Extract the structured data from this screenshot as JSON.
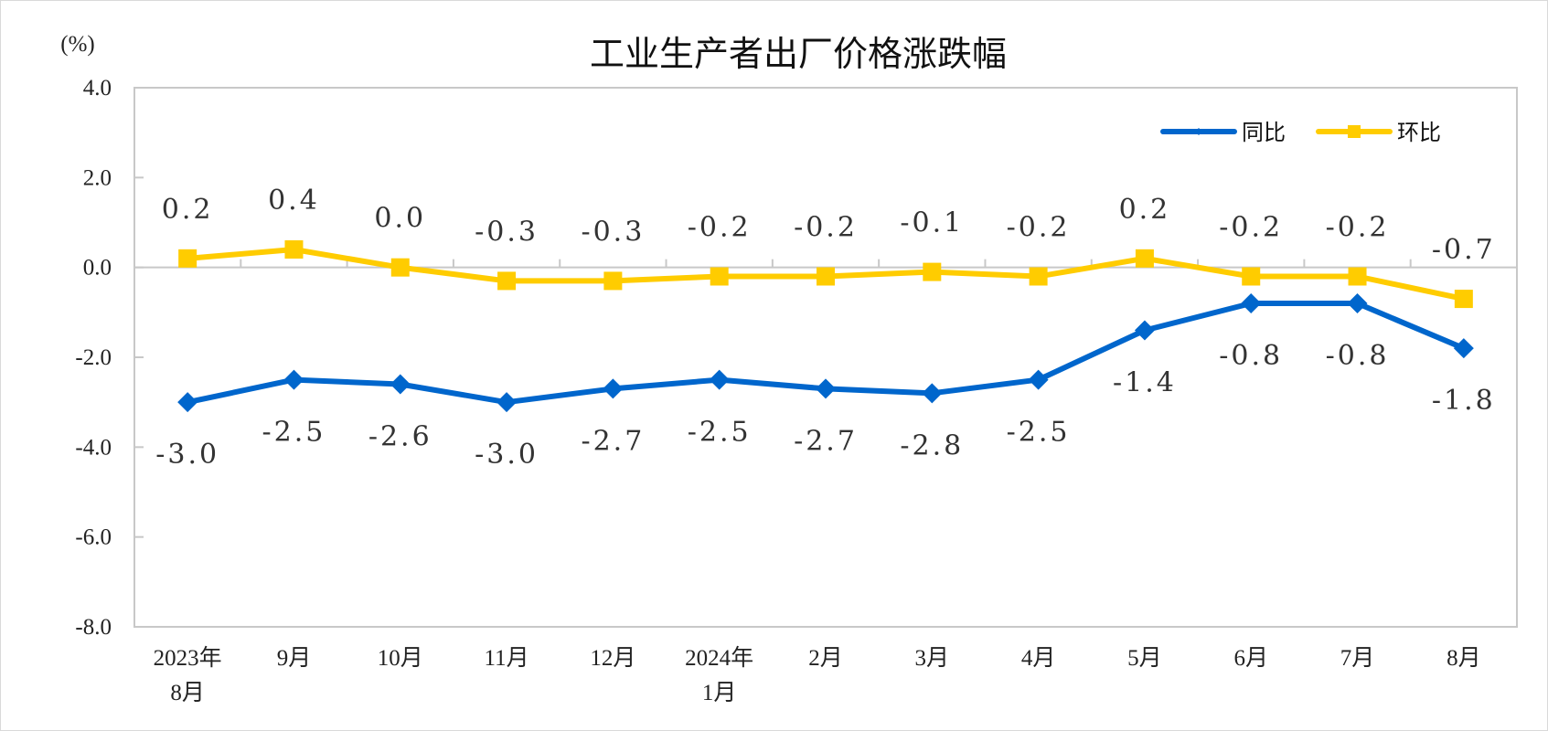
{
  "chart_data": {
    "type": "line",
    "title": "工业生产者出厂价格涨跌幅",
    "ylabel": "(%)",
    "ylim": [
      -8.0,
      4.0
    ],
    "yticks": [
      "4.0",
      "2.0",
      "0.0",
      "-2.0",
      "-4.0",
      "-6.0",
      "-8.0"
    ],
    "ytick_values": [
      4,
      2,
      0,
      -2,
      -4,
      -6,
      -8
    ],
    "categories": [
      [
        "2023年",
        "8月"
      ],
      [
        "9月"
      ],
      [
        "10月"
      ],
      [
        "11月"
      ],
      [
        "12月"
      ],
      [
        "2024年",
        "1月"
      ],
      [
        "2月"
      ],
      [
        "3月"
      ],
      [
        "4月"
      ],
      [
        "5月"
      ],
      [
        "6月"
      ],
      [
        "7月"
      ],
      [
        "8月"
      ]
    ],
    "grid": false,
    "legend": "top-right",
    "series": [
      {
        "name": "同比",
        "color": "#0066CC",
        "marker": "diamond",
        "values": [
          -3.0,
          -2.5,
          -2.6,
          -3.0,
          -2.7,
          -2.5,
          -2.7,
          -2.8,
          -2.5,
          -1.4,
          -0.8,
          -0.8,
          -1.8
        ],
        "labels": [
          "-3.0",
          "-2.5",
          "-2.6",
          "-3.0",
          "-2.7",
          "-2.5",
          "-2.7",
          "-2.8",
          "-2.5",
          "-1.4",
          "-0.8",
          "-0.8",
          "-1.8"
        ]
      },
      {
        "name": "环比",
        "color": "#FFCC00",
        "marker": "square",
        "values": [
          0.2,
          0.4,
          0.0,
          -0.3,
          -0.3,
          -0.2,
          -0.2,
          -0.1,
          -0.2,
          0.2,
          -0.2,
          -0.2,
          -0.7
        ],
        "labels": [
          "0.2",
          "0.4",
          "0.0",
          "-0.3",
          "-0.3",
          "-0.2",
          "-0.2",
          "-0.1",
          "-0.2",
          "0.2",
          "-0.2",
          "-0.2",
          "-0.7"
        ]
      }
    ]
  }
}
